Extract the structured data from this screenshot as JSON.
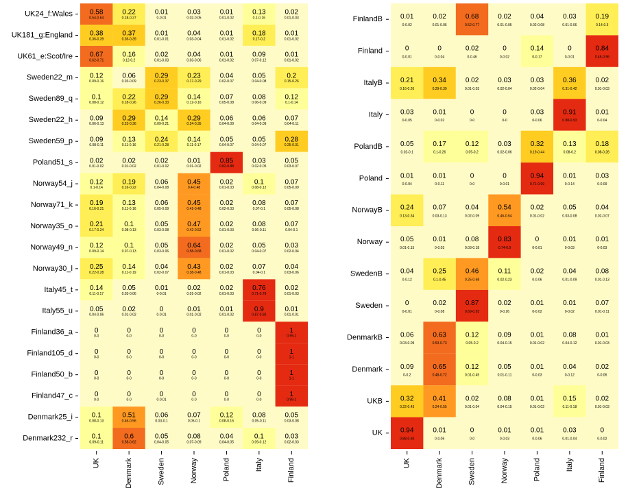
{
  "colors": {
    "very_low": "#fffbc6",
    "low": "#ffff99",
    "mid_low": "#ffee55",
    "mid": "#ffcc22",
    "mid_high": "#ff9922",
    "high": "#f26b1e",
    "very_high": "#e52a12"
  },
  "chart_data": [
    {
      "type": "heatmap",
      "title": "",
      "columns": [
        "UK",
        "Denmark",
        "Sweden",
        "Norway",
        "Poland",
        "Italy",
        "Finland"
      ],
      "rows": [
        "UK24_f:Wales",
        "UK181_g:England",
        "UK61_e:Scot/Ire",
        "Sweden22_m",
        "Sweden89_q",
        "Sweden22_h",
        "Sweden59_p",
        "Poland51_s",
        "Norway54_j",
        "Norway71_k",
        "Norway35_o",
        "Norway49_n",
        "Norway30_l",
        "Italy45_t",
        "Italy55_u",
        "Finland36_a",
        "Finland105_d",
        "Finland50_b",
        "Finland47_c",
        "Denmark25_i",
        "Denmark232_r"
      ],
      "values": [
        [
          0.58,
          0.22,
          0.01,
          0.03,
          0.01,
          0.13,
          0.02
        ],
        [
          0.38,
          0.37,
          0.01,
          0.04,
          0.01,
          0.18,
          0.01
        ],
        [
          0.67,
          0.16,
          0.02,
          0.04,
          0.01,
          0.09,
          0.01
        ],
        [
          0.12,
          0.06,
          0.29,
          0.23,
          0.04,
          0.05,
          0.2
        ],
        [
          0.1,
          0.22,
          0.29,
          0.14,
          0.07,
          0.08,
          0.12
        ],
        [
          0.09,
          0.29,
          0.14,
          0.29,
          0.06,
          0.06,
          0.07
        ],
        [
          0.09,
          0.13,
          0.24,
          0.14,
          0.05,
          0.05,
          0.28
        ],
        [
          0.02,
          0.02,
          0.02,
          0.01,
          0.85,
          0.03,
          0.05
        ],
        [
          0.12,
          0.19,
          0.06,
          0.45,
          0.02,
          0.1,
          0.07
        ],
        [
          0.19,
          0.13,
          0.06,
          0.45,
          0.02,
          0.08,
          0.07
        ],
        [
          0.21,
          0.1,
          0.05,
          0.47,
          0.02,
          0.08,
          0.07
        ],
        [
          0.12,
          0.1,
          0.05,
          0.64,
          0.02,
          0.05,
          0.03
        ],
        [
          0.25,
          0.14,
          0.04,
          0.43,
          0.02,
          0.07,
          0.04
        ],
        [
          0.14,
          0.05,
          0.01,
          0.02,
          0.02,
          0.76,
          0.02
        ],
        [
          0.05,
          0.02,
          0,
          0.01,
          0.01,
          0.9,
          0.01
        ],
        [
          0,
          0,
          0,
          0,
          0,
          0,
          1
        ],
        [
          0,
          0,
          0,
          0,
          0,
          0,
          1
        ],
        [
          0,
          0,
          0,
          0,
          0,
          0,
          1
        ],
        [
          0,
          0,
          0,
          0,
          0,
          0,
          1
        ],
        [
          0.1,
          0.51,
          0.06,
          0.07,
          0.12,
          0.08,
          0.05
        ],
        [
          0.1,
          0.6,
          0.05,
          0.08,
          0.04,
          0.1,
          0.03
        ]
      ],
      "intervals": [
        [
          "0.54-0.64",
          "0.18-0.27",
          "0-0.01",
          "0.02-0.05",
          "0.01-0.02",
          "0.1-0.16",
          "0.01-0.03"
        ],
        [
          "0.36-0.39",
          "0.36-0.39",
          "0.01-0.01",
          "0.03-0.04",
          "0.01-0.02",
          "0.17-0.2",
          "0.01-0.02"
        ],
        [
          "0.62-0.71",
          "0.12-0.2",
          "0.01-0.03",
          "0.03-0.06",
          "0.01-0.02",
          "0.07-0.12",
          "0.01-0.02"
        ],
        [
          "0.09-0.16",
          "0.03-0.09",
          "0.23-0.37",
          "0.17-0.29",
          "0.02-0.07",
          "0.04-0.08",
          "0.15-0.26"
        ],
        [
          "0.08-0.12",
          "0.18-0.26",
          "0.26-0.33",
          "0.12-0.16",
          "0.05-0.08",
          "0.06-0.09",
          "0.1-0.14"
        ],
        [
          "0.06-0.13",
          "0.23-0.36",
          "0.09-0.21",
          "0.24-0.35",
          "0.04-0.09",
          "0.04-0.09",
          "0.04-0.11"
        ],
        [
          "0.08-0.11",
          "0.11-0.16",
          "0.21-0.28",
          "0.11-0.17",
          "0.04-0.07",
          "0.04-0.07",
          "0.25-0.31"
        ],
        [
          "0.01-0.02",
          "0.01-0.02",
          "0.01-0.02",
          "0.01-0.02",
          "0.82-0.88",
          "0.02-0.05",
          "0.03-0.07"
        ],
        [
          "0.1-0.14",
          "0.16-0.22",
          "0.04-0.08",
          "0.4-0.48",
          "0.01-0.03",
          "0.08-0.12",
          "0.05-0.09"
        ],
        [
          "0.16-0.21",
          "0.11-0.16",
          "0.05-0.09",
          "0.41-0.48",
          "0.02-0.03",
          "0.07-0.1",
          "0.05-0.08"
        ],
        [
          "0.17-0.24",
          "0.08-0.13",
          "0.03-0.08",
          "0.42-0.52",
          "0.01-0.03",
          "0.06-0.11",
          "0.04-0.1"
        ],
        [
          "0.09-0.14",
          "0.07-0.13",
          "0.03-0.06",
          "0.58-0.68",
          "0.01-0.02",
          "0.04-0.07",
          "0.02-0.04"
        ],
        [
          "0.22-0.28",
          "0.11-0.19",
          "0.02-0.07",
          "0.38-0.48",
          "0.01-0.03",
          "0.04-0.1",
          "0.03-0.06"
        ],
        [
          "0.11-0.17",
          "0.03-0.06",
          "0-0.01",
          "0.01-0.02",
          "0.01-0.03",
          "0.71-0.79",
          "0.01-0.03"
        ],
        [
          "0.04-0.06",
          "0.01-0.02",
          "0-0.01",
          "0.01-0.02",
          "0.01-0.02",
          "0.87-0.92",
          "0.01-0.01"
        ],
        [
          "0-0",
          "0-0",
          "0-0",
          "0-0",
          "0-0",
          "0-0",
          "0.99-1"
        ],
        [
          "0-0",
          "0-0",
          "0-0",
          "0-0",
          "0-0",
          "0-0",
          "1-1"
        ],
        [
          "0-0",
          "0-0",
          "0-0",
          "0-0",
          "0-0",
          "0-0",
          "1-1"
        ],
        [
          "0-0",
          "0-0",
          "0-0.01",
          "0-0",
          "0-0",
          "0-0",
          "0.99-1"
        ],
        [
          "0.08-0.13",
          "0.46-0.56",
          "0.03-0.1",
          "0.05-0.1",
          "0.08-0.16",
          "0.05-0.11",
          "0.03-0.08"
        ],
        [
          "0.09-0.11",
          "0.58-0.62",
          "0.04-0.05",
          "0.07-0.09",
          "0.04-0.05",
          "0.09-0.12",
          "0.02-0.03"
        ]
      ]
    },
    {
      "type": "heatmap",
      "title": "",
      "columns": [
        "UK",
        "Denmark",
        "Sweden",
        "Norway",
        "Poland",
        "Italy",
        "Finland"
      ],
      "rows": [
        "FinlandB",
        "Finland",
        "ItalyB",
        "Italy",
        "PolandB",
        "Poland",
        "NorwayB",
        "Norway",
        "SwedenB",
        "Sweden",
        "DenmarkB",
        "Denmark",
        "UKB",
        "UK"
      ],
      "values": [
        [
          0.01,
          0.02,
          0.68,
          0.02,
          0.04,
          0.03,
          0.19
        ],
        [
          0,
          0,
          0.02,
          0,
          0.14,
          0,
          0.84
        ],
        [
          0.21,
          0.34,
          0.02,
          0.03,
          0.03,
          0.36,
          0.02
        ],
        [
          0.03,
          0.01,
          0,
          0,
          0.03,
          0.91,
          0.01
        ],
        [
          0.05,
          0.17,
          0.12,
          0.03,
          0.32,
          0.13,
          0.18
        ],
        [
          0.01,
          0.01,
          0,
          0,
          0.94,
          0.01,
          0.03
        ],
        [
          0.24,
          0.07,
          0.04,
          0.54,
          0.02,
          0.05,
          0.04
        ],
        [
          0.05,
          0.01,
          0.08,
          0.83,
          0,
          0.01,
          0.01
        ],
        [
          0.04,
          0.25,
          0.46,
          0.11,
          0.02,
          0.04,
          0.08
        ],
        [
          0,
          0.02,
          0.87,
          0.02,
          0.01,
          0.01,
          0.07
        ],
        [
          0.06,
          0.63,
          0.12,
          0.09,
          0.01,
          0.08,
          0.01
        ],
        [
          0.09,
          0.65,
          0.12,
          0.05,
          0.01,
          0.04,
          0.02
        ],
        [
          0.32,
          0.41,
          0.02,
          0.08,
          0.01,
          0.15,
          0.02
        ],
        [
          0.94,
          0.01,
          0,
          0.01,
          0.01,
          0.03,
          0
        ]
      ],
      "intervals": [
        [
          "0-0.02",
          "0.01-0.06",
          "0.52-0.77",
          "0.01-0.05",
          "0.02-0.08",
          "0.01-0.06",
          "0.14-0.3"
        ],
        [
          "0-0.01",
          "0-0.04",
          "0-0.46",
          "0-0.02",
          "0-0.17",
          "0-0.01",
          "0.45-0.96"
        ],
        [
          "0.16-0.26",
          "0.29-0.39",
          "0.01-0.03",
          "0.02-0.04",
          "0.02-0.04",
          "0.31-0.42",
          "0.01-0.03"
        ],
        [
          "0-0.05",
          "0-0.02",
          "0-0",
          "0-0",
          "0-0.06",
          "0.88-0.93",
          "0-0.04"
        ],
        [
          "0.02-0.1",
          "0.1-0.26",
          "0.05-0.2",
          "0.02-0.06",
          "0.19-0.44",
          "0.08-0.2",
          "0.08-0.28"
        ],
        [
          "0-0.04",
          "0-0.11",
          "0-0",
          "0-0.01",
          "0.71-0.99",
          "0-0.14",
          "0-0.09"
        ],
        [
          "0.13-0.34",
          "0.03-0.13",
          "0.02-0.09",
          "0.46-0.64",
          "0.01-0.02",
          "0.03-0.08",
          "0.02-0.07"
        ],
        [
          "0.01-0.15",
          "0-0.03",
          "0.03-0.18",
          "0.74-0.9",
          "0-0.01",
          "0-0.03",
          "0-0.03"
        ],
        [
          "0-0.12",
          "0.1-0.45",
          "0.25-0.68",
          "0.02-0.23",
          "0-0.06",
          "0.01-0.09",
          "0.01-0.13"
        ],
        [
          "0-0.01",
          "0-0.08",
          "0.69-0.93",
          "0-0.26",
          "0-0.02",
          "0-0.02",
          "0.01-0.11"
        ],
        [
          "0.03-0.09",
          "0.53-0.73",
          "0.05-0.2",
          "0.04-0.15",
          "0.01-0.02",
          "0.04-0.12",
          "0.01-0.03"
        ],
        [
          "0-0.2",
          "0.48-0.72",
          "0.01-0.45",
          "0.01-0.11",
          "0-0.03",
          "0-0.12",
          "0-0.06"
        ],
        [
          "0.22-0.43",
          "0.24-0.55",
          "0.01-0.04",
          "0.04-0.15",
          "0.01-0.02",
          "0.11-0.18",
          "0.01-0.03"
        ],
        [
          "0.88-0.94",
          "0-0.06",
          "0-0",
          "0-0.03",
          "0-0.06",
          "0.01-0.04",
          "0-0.02"
        ]
      ]
    }
  ]
}
